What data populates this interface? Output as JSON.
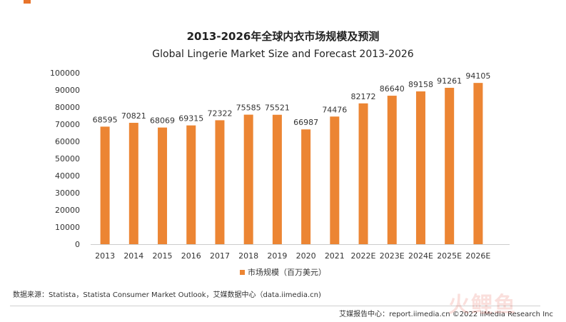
{
  "header": {
    "title_cn": "2013-2026年全球内衣市场规模及预测",
    "title_en": "Global Lingerie Market Size and Forecast 2013-2026"
  },
  "colors": {
    "bar": "#EC8533",
    "accent": "#E8742B",
    "axis": "#cccccc"
  },
  "chart_data": {
    "type": "bar",
    "title": "2013-2026年全球内衣市场规模及预测",
    "subtitle": "Global Lingerie Market Size and Forecast 2013-2026",
    "categories": [
      "2013",
      "2014",
      "2015",
      "2016",
      "2017",
      "2018",
      "2019",
      "2020",
      "2021",
      "2022E",
      "2023E",
      "2024E",
      "2025E",
      "2026E"
    ],
    "series": [
      {
        "name": "市场规模（百万美元）",
        "values": [
          68595,
          70821,
          68069,
          69315,
          72322,
          75585,
          75521,
          66987,
          74476,
          82172,
          86640,
          89158,
          91261,
          94105
        ]
      }
    ],
    "ylim": [
      0,
      100000
    ],
    "yticks": [
      0,
      10000,
      20000,
      30000,
      40000,
      50000,
      60000,
      70000,
      80000,
      90000,
      100000
    ],
    "xlabel": "",
    "ylabel": "",
    "grid": false,
    "legend_position": "bottom"
  },
  "legend": {
    "label": "市场规模（百万美元）"
  },
  "source": {
    "text": "数据来源：Statista，Statista Consumer Market Outlook，艾媒数据中心（data.iimedia.cn)"
  },
  "footer": {
    "text": "艾媒报告中心：report.iimedia.cn ©2022 iiMedia Research Inc"
  },
  "watermark": {
    "text": "火鲤鱼"
  }
}
